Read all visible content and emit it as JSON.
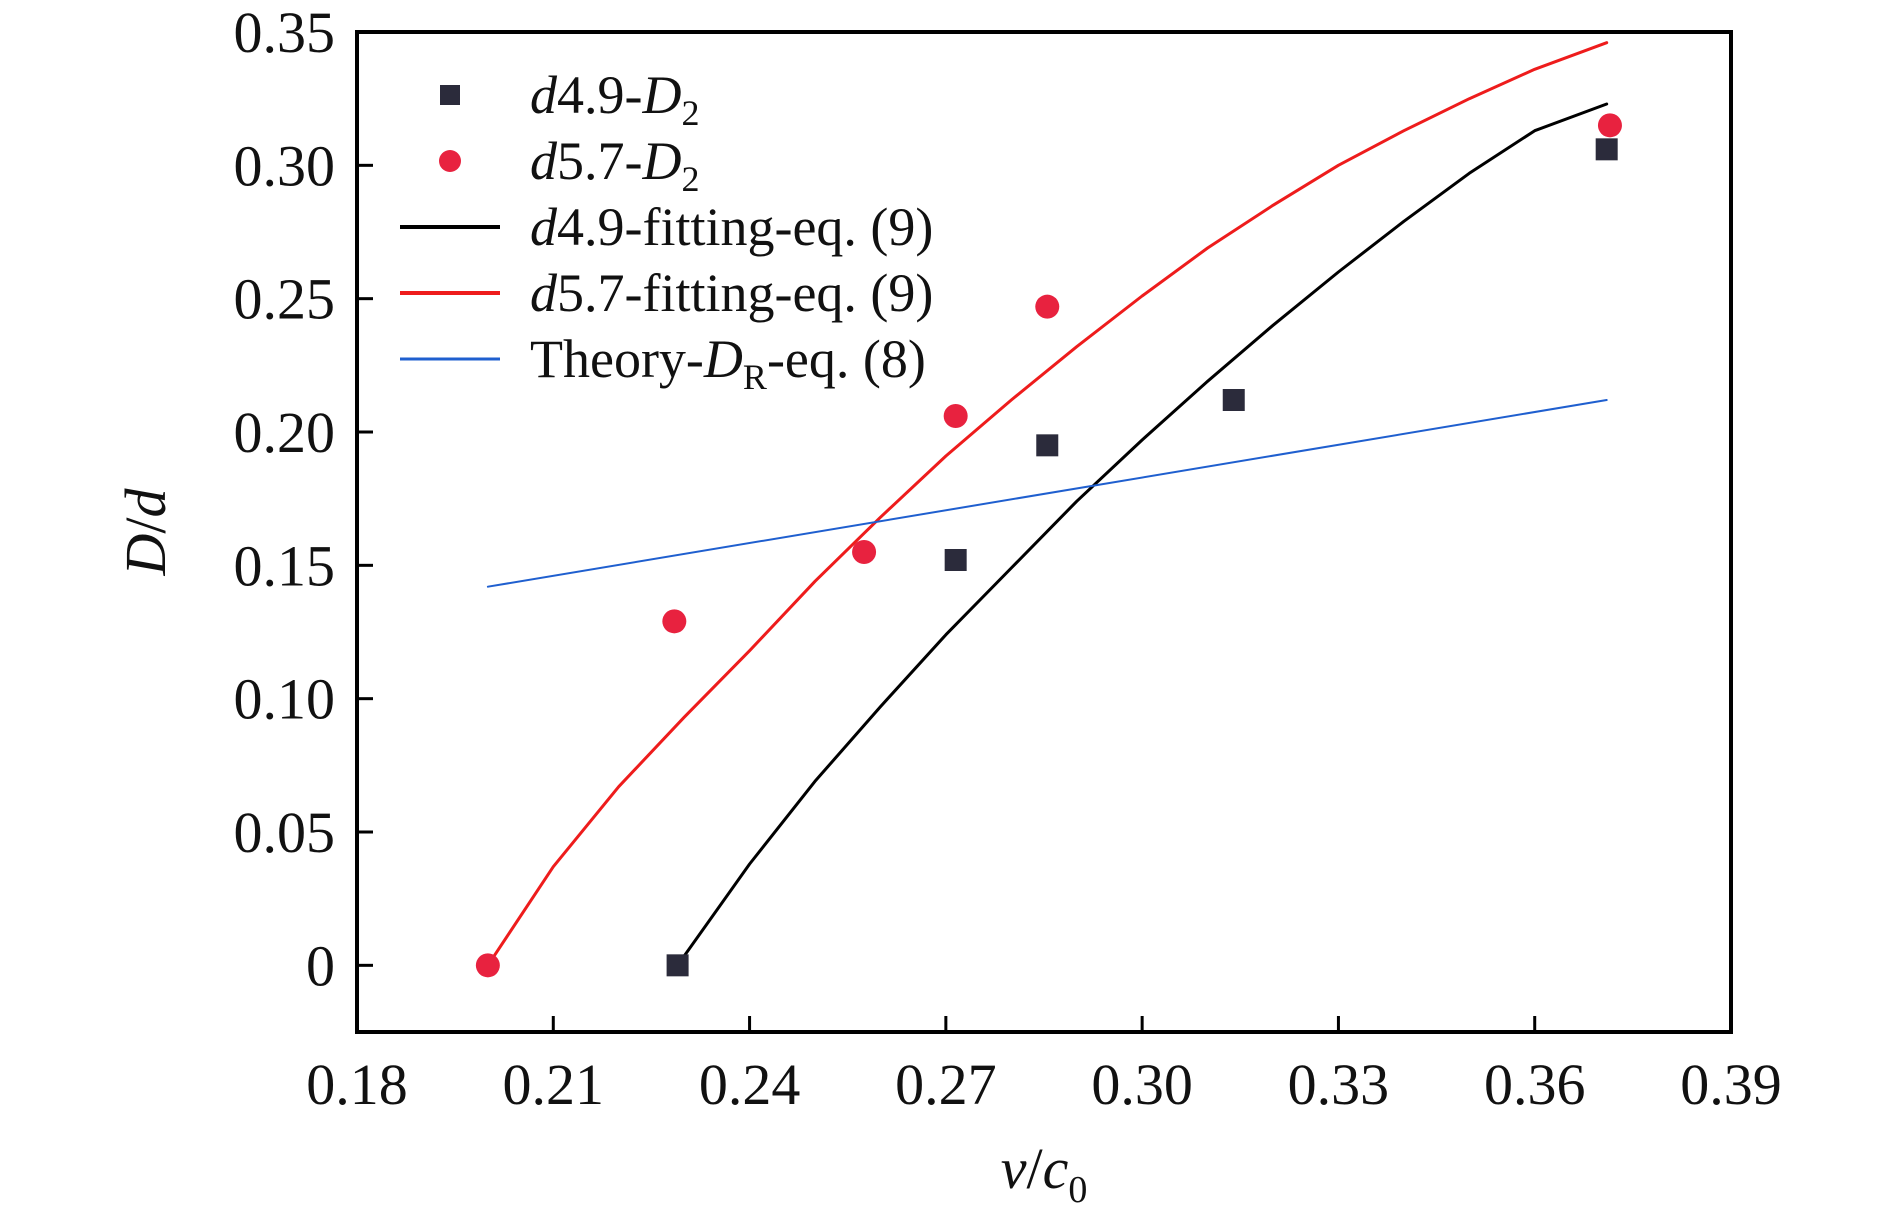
{
  "chart_data": {
    "type": "scatter",
    "xlabel": {
      "var": "v",
      "sep": "/",
      "var2": "c",
      "sub": "0"
    },
    "ylabel": {
      "var": "D",
      "sep": "/",
      "var2": "d"
    },
    "xlim": [
      0.18,
      0.39
    ],
    "ylim": [
      -0.025,
      0.35
    ],
    "x_ticks": [
      0.18,
      0.21,
      0.24,
      0.27,
      0.3,
      0.33,
      0.36,
      0.39
    ],
    "x_tick_labels": [
      "0.18",
      "0.21",
      "0.24",
      "0.27",
      "0.30",
      "0.33",
      "0.36",
      "0.39"
    ],
    "y_ticks": [
      0,
      0.05,
      0.1,
      0.15,
      0.2,
      0.25,
      0.3,
      0.35
    ],
    "y_tick_labels": [
      "0",
      "0.05",
      "0.10",
      "0.15",
      "0.20",
      "0.25",
      "0.30",
      "0.35"
    ],
    "grid": false,
    "legend_position": "top-left",
    "series": [
      {
        "name": "d4.9-D2",
        "label_parts": [
          [
            "d",
            "i"
          ],
          [
            "4.9-",
            "n"
          ],
          [
            "D",
            "i"
          ],
          [
            "2",
            "sub"
          ]
        ],
        "kind": "points",
        "marker": "square",
        "color": "#2b2b3b",
        "x": [
          0.229,
          0.2715,
          0.2855,
          0.314,
          0.371
        ],
        "y": [
          0.0,
          0.152,
          0.195,
          0.212,
          0.306
        ]
      },
      {
        "name": "d5.7-D2",
        "label_parts": [
          [
            "d",
            "i"
          ],
          [
            "5.7-",
            "n"
          ],
          [
            "D",
            "i"
          ],
          [
            "2",
            "sub"
          ]
        ],
        "kind": "points",
        "marker": "circle",
        "color": "#e8223f",
        "x": [
          0.2,
          0.2285,
          0.2575,
          0.2715,
          0.2855,
          0.3715
        ],
        "y": [
          0.0,
          0.129,
          0.155,
          0.206,
          0.247,
          0.315
        ]
      },
      {
        "name": "d4.9-fitting-eq. (9)",
        "label_parts": [
          [
            "d",
            "i"
          ],
          [
            "4.9-fitting-eq. (9)",
            "n"
          ]
        ],
        "kind": "line",
        "color": "#000000",
        "stroke_width": 3,
        "x": [
          0.229,
          0.24,
          0.25,
          0.26,
          0.27,
          0.28,
          0.29,
          0.3,
          0.31,
          0.32,
          0.33,
          0.34,
          0.35,
          0.36,
          0.371
        ],
        "y": [
          0.0,
          0.038,
          0.069,
          0.097,
          0.124,
          0.149,
          0.174,
          0.197,
          0.219,
          0.24,
          0.26,
          0.279,
          0.297,
          0.313,
          0.323
        ]
      },
      {
        "name": "d5.7-fitting-eq. (9)",
        "label_parts": [
          [
            "d",
            "i"
          ],
          [
            "5.7-fitting-eq. (9)",
            "n"
          ]
        ],
        "kind": "line",
        "color": "#ee1c1c",
        "stroke_width": 3,
        "x": [
          0.2,
          0.21,
          0.22,
          0.23,
          0.24,
          0.25,
          0.26,
          0.27,
          0.28,
          0.29,
          0.3,
          0.31,
          0.32,
          0.33,
          0.34,
          0.35,
          0.36,
          0.371
        ],
        "y": [
          0.0,
          0.037,
          0.067,
          0.093,
          0.118,
          0.144,
          0.168,
          0.191,
          0.212,
          0.232,
          0.251,
          0.269,
          0.285,
          0.3,
          0.313,
          0.325,
          0.336,
          0.346
        ]
      },
      {
        "name": "Theory-DR-eq. (8)",
        "label_parts": [
          [
            "Theory-",
            "n"
          ],
          [
            "D",
            "i"
          ],
          [
            "R",
            "sub"
          ],
          [
            "-eq. (8)",
            "n"
          ]
        ],
        "kind": "line",
        "color": "#1f5fcf",
        "stroke_width": 2,
        "x": [
          0.2,
          0.371
        ],
        "y": [
          0.142,
          0.212
        ]
      }
    ]
  }
}
